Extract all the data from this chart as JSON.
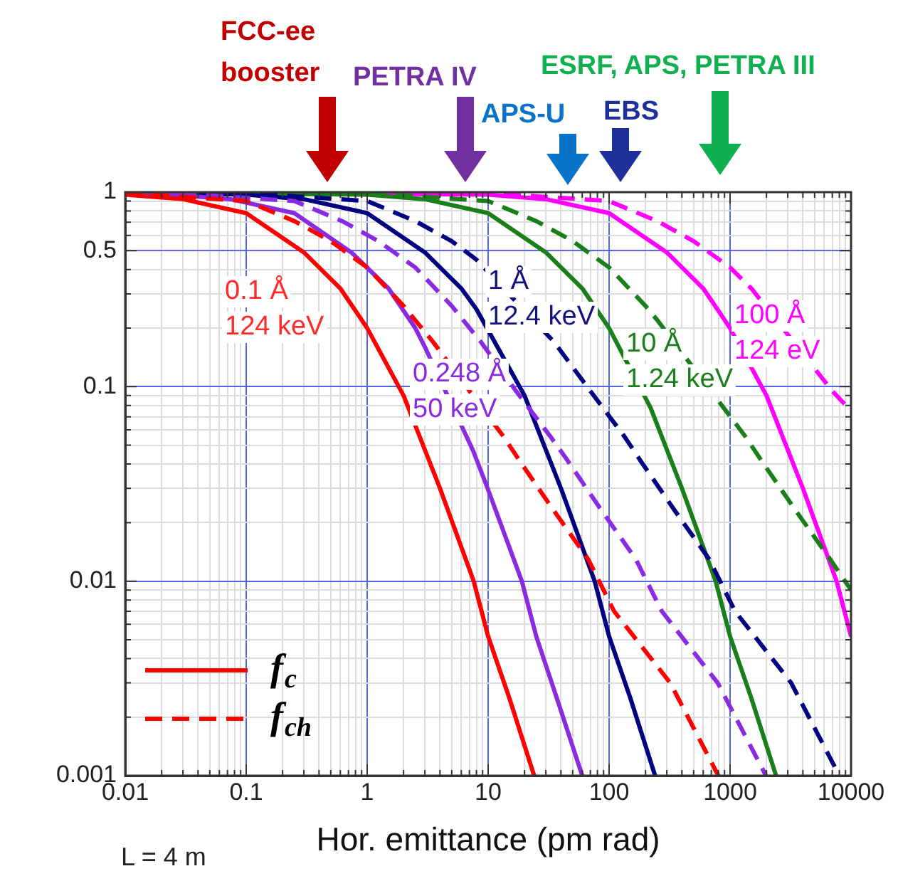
{
  "chart_data": {
    "type": "line",
    "xlabel": "Hor. emittance (pm rad)",
    "log": "xy",
    "xlim": [
      0.01,
      10000
    ],
    "ylim": [
      0.001,
      1
    ],
    "xticks": [
      0.01,
      {
        "value": 0.02,
        "label": null
      },
      {
        "value": 0.03,
        "label": null
      },
      {
        "value": 0.04,
        "label": null
      },
      {
        "value": 0.05,
        "label": null
      },
      {
        "value": 0.06,
        "label": null
      },
      {
        "value": 0.07,
        "label": null
      },
      {
        "value": 0.08,
        "label": null
      },
      {
        "value": 0.09,
        "label": null
      },
      0.1,
      {
        "value": 0.2,
        "label": null
      },
      {
        "value": 0.3,
        "label": null
      },
      {
        "value": 0.4,
        "label": null
      },
      {
        "value": 0.5,
        "label": null
      },
      {
        "value": 0.6,
        "label": null
      },
      {
        "value": 0.7,
        "label": null
      },
      {
        "value": 0.8,
        "label": null
      },
      {
        "value": 0.9,
        "label": null
      },
      1,
      {
        "value": 2,
        "label": null
      },
      {
        "value": 3,
        "label": null
      },
      {
        "value": 4,
        "label": null
      },
      {
        "value": 5,
        "label": null
      },
      {
        "value": 6,
        "label": null
      },
      {
        "value": 7,
        "label": null
      },
      {
        "value": 8,
        "label": null
      },
      {
        "value": 9,
        "label": null
      },
      10,
      {
        "value": 20,
        "label": null
      },
      {
        "value": 30,
        "label": null
      },
      {
        "value": 40,
        "label": null
      },
      {
        "value": 50,
        "label": null
      },
      {
        "value": 60,
        "label": null
      },
      {
        "value": 70,
        "label": null
      },
      {
        "value": 80,
        "label": null
      },
      {
        "value": 90,
        "label": null
      },
      100,
      {
        "value": 200,
        "label": null
      },
      {
        "value": 300,
        "label": null
      },
      {
        "value": 400,
        "label": null
      },
      {
        "value": 500,
        "label": null
      },
      {
        "value": 600,
        "label": null
      },
      {
        "value": 700,
        "label": null
      },
      {
        "value": 800,
        "label": null
      },
      {
        "value": 900,
        "label": null
      },
      1000,
      {
        "value": 2000,
        "label": null
      },
      {
        "value": 3000,
        "label": null
      },
      {
        "value": 4000,
        "label": null
      },
      {
        "value": 5000,
        "label": null
      },
      {
        "value": 6000,
        "label": null
      },
      {
        "value": 7000,
        "label": null
      },
      {
        "value": 8000,
        "label": null
      },
      {
        "value": 9000,
        "label": null
      },
      10000
    ],
    "yticks": [
      0.001,
      {
        "value": 0.002,
        "label": null
      },
      {
        "value": 0.003,
        "label": null
      },
      {
        "value": 0.004,
        "label": null
      },
      {
        "value": 0.005,
        "label": null
      },
      {
        "value": 0.006,
        "label": null
      },
      {
        "value": 0.007,
        "label": null
      },
      {
        "value": 0.008,
        "label": null
      },
      {
        "value": 0.009,
        "label": null
      },
      0.01,
      {
        "value": 0.02,
        "label": null
      },
      {
        "value": 0.03,
        "label": null
      },
      {
        "value": 0.04,
        "label": null
      },
      {
        "value": 0.05,
        "label": null
      },
      {
        "value": 0.06,
        "label": null
      },
      {
        "value": 0.07,
        "label": null
      },
      {
        "value": 0.08,
        "label": null
      },
      {
        "value": 0.09,
        "label": null
      },
      0.1,
      {
        "value": 0.2,
        "label": null
      },
      {
        "value": 0.3,
        "label": null
      },
      {
        "value": 0.4,
        "label": null
      },
      0.5,
      {
        "value": 0.6,
        "label": null
      },
      {
        "value": 0.7,
        "label": null
      },
      {
        "value": 0.8,
        "label": null
      },
      {
        "value": 0.9,
        "label": null
      },
      1
    ],
    "grid": true,
    "legend": "bottom left",
    "marker": "none",
    "annotations": [
      "FCC-ee\nbooster",
      "PETRA IV",
      "APS-U",
      "EBS",
      "ESRF, APS, PETRA III",
      "0.1 Å\n124 keV",
      "0.248 Å\n50 keV",
      "1 Å\n12.4 keV",
      "10 Å\n1.24 keV",
      "100 Å\n124 eV",
      "L = 4 m"
    ],
    "series": [
      {
        "name": "f$_{c}$",
        "color": "#ff0000",
        "line_style": "solid",
        "x": [
          0.01,
          0.03,
          0.1,
          0.3,
          0.6,
          1,
          2,
          4,
          7.6,
          10,
          15,
          24
        ],
        "values": [
          0.97,
          0.92,
          0.78,
          0.49,
          0.32,
          0.2,
          0.09,
          0.03,
          0.01,
          0.0052,
          0.0025,
          0.001
        ]
      },
      {
        "name": "f$_{ch}$",
        "color": "#ff0000",
        "line_style": "dashed",
        "x": [
          0.01,
          0.1,
          0.25,
          0.5,
          1,
          2,
          3.5,
          13.5,
          18,
          35,
          67,
          110,
          320,
          800
        ],
        "values": [
          0.99,
          0.9,
          0.71,
          0.56,
          0.41,
          0.26,
          0.17,
          0.055,
          0.042,
          0.023,
          0.013,
          0.007,
          0.003,
          0.001
        ]
      },
      {
        "color": "#8a2be2",
        "line_style": "solid",
        "x": [
          0.01,
          0.025,
          0.074,
          0.25,
          0.74,
          1.5,
          2.5,
          3,
          7.5,
          9.9,
          19,
          25,
          37,
          60
        ],
        "values": [
          0.99,
          0.97,
          0.92,
          0.78,
          0.49,
          0.32,
          0.2,
          0.16,
          0.047,
          0.03,
          0.01,
          0.0052,
          0.0025,
          0.001
        ]
      },
      {
        "color": "#8a2be2",
        "line_style": "dashed",
        "x": [
          0.01,
          0.025,
          0.25,
          0.62,
          1.24,
          2.5,
          5,
          8.7,
          17,
          33,
          45,
          87,
          166,
          273,
          790,
          1980
        ],
        "values": [
          1,
          0.99,
          0.9,
          0.71,
          0.56,
          0.41,
          0.26,
          0.17,
          0.095,
          0.055,
          0.042,
          0.023,
          0.013,
          0.007,
          0.003,
          0.001
        ]
      },
      {
        "color": "#000080",
        "line_style": "solid",
        "x": [
          0.01,
          0.1,
          0.3,
          1,
          3,
          6,
          8,
          20,
          40,
          76,
          100,
          150,
          240
        ],
        "values": [
          1,
          0.97,
          0.92,
          0.78,
          0.49,
          0.32,
          0.25,
          0.09,
          0.03,
          0.01,
          0.0052,
          0.0025,
          0.001
        ]
      },
      {
        "color": "#000080",
        "line_style": "dashed",
        "x": [
          0.01,
          0.1,
          1,
          2.5,
          5,
          8,
          35,
          70,
          135,
          180,
          350,
          670,
          1100,
          3200,
          8000
        ],
        "values": [
          1,
          0.99,
          0.9,
          0.71,
          0.56,
          0.45,
          0.17,
          0.095,
          0.055,
          0.042,
          0.023,
          0.013,
          0.007,
          0.003,
          0.001
        ]
      },
      {
        "color": "#1a7f1a",
        "line_style": "solid",
        "x": [
          0.01,
          1,
          3,
          10,
          30,
          60,
          100,
          220,
          400,
          760,
          1000,
          1500,
          2400
        ],
        "values": [
          1,
          0.97,
          0.92,
          0.78,
          0.49,
          0.32,
          0.2,
          0.078,
          0.03,
          0.01,
          0.0052,
          0.0025,
          0.001
        ]
      },
      {
        "color": "#1a7f1a",
        "line_style": "dashed",
        "x": [
          0.01,
          1,
          10,
          25,
          50,
          100,
          200,
          250,
          1350,
          1800,
          3500,
          6700,
          10000
        ],
        "values": [
          1,
          0.99,
          0.9,
          0.71,
          0.56,
          0.41,
          0.26,
          0.22,
          0.055,
          0.042,
          0.023,
          0.013,
          0.009
        ]
      },
      {
        "color": "#ff00ff",
        "line_style": "solid",
        "x": [
          0.01,
          10,
          30,
          100,
          300,
          600,
          1000,
          2000,
          4000,
          7600,
          10000
        ],
        "values": [
          1,
          0.97,
          0.92,
          0.78,
          0.49,
          0.32,
          0.2,
          0.09,
          0.03,
          0.01,
          0.0052
        ]
      },
      {
        "color": "#ff00ff",
        "line_style": "dashed",
        "x": [
          0.01,
          10,
          100,
          250,
          500,
          1000,
          1500,
          7000,
          10000
        ],
        "values": [
          1,
          0.99,
          0.9,
          0.71,
          0.56,
          0.41,
          0.32,
          0.095,
          0.075
        ]
      }
    ]
  }
}
